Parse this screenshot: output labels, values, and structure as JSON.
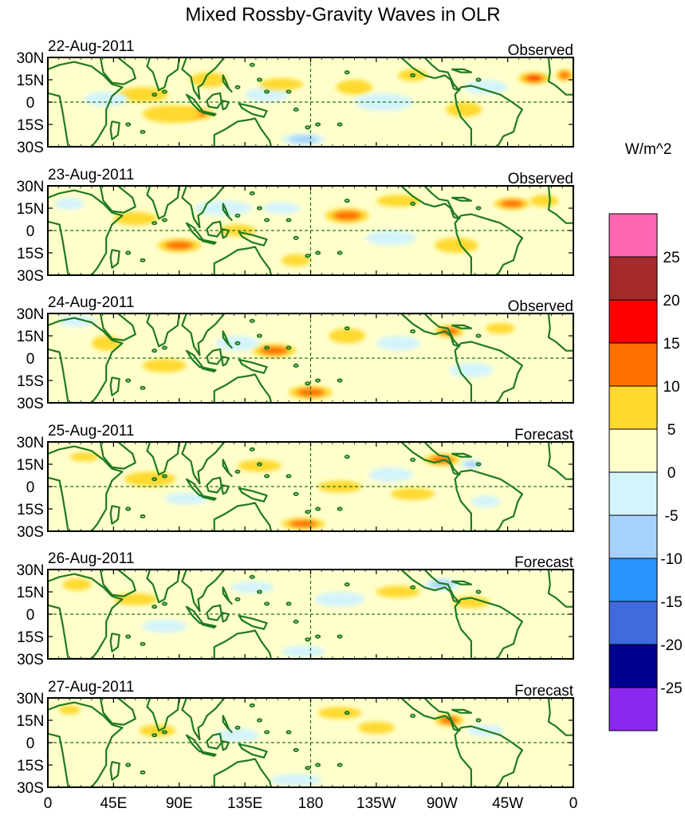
{
  "chart_data": {
    "type": "heatmap",
    "title": "Mixed Rossby-Gravity Waves in OLR",
    "units": "W/m^2",
    "x_ticks": [
      "0",
      "45E",
      "90E",
      "135E",
      "180",
      "135W",
      "90W",
      "45W",
      "0"
    ],
    "y_ticks": [
      "30N",
      "15N",
      "0",
      "15S",
      "30S"
    ],
    "x_range_deg": [
      0,
      360
    ],
    "y_range_deg": [
      -30,
      30
    ],
    "colorbar": {
      "levels": [
        "25",
        "20",
        "15",
        "10",
        "5",
        "0",
        "-5",
        "-10",
        "-15",
        "-20",
        "-25"
      ],
      "colors": [
        "#ff66b3",
        "#a52a2a",
        "#ff0000",
        "#ff7000",
        "#ffd92e",
        "#ffffcc",
        "#d4f4fb",
        "#a6d1fa",
        "#2893ff",
        "#3f6bde",
        "#000090",
        "#8c28ee"
      ]
    },
    "panels": [
      {
        "date": "22-Aug-2011",
        "kind": "Observed",
        "blobs": [
          {
            "lon": 65,
            "lat": 5,
            "val": 7,
            "w": 35,
            "h": 10
          },
          {
            "lon": 100,
            "lat": -8,
            "val": 16,
            "w": 28,
            "h": 8
          },
          {
            "lon": 85,
            "lat": -8,
            "val": 8,
            "w": 40,
            "h": 12
          },
          {
            "lon": 110,
            "lat": 15,
            "val": 6,
            "w": 25,
            "h": 10
          },
          {
            "lon": 150,
            "lat": 5,
            "val": -9,
            "w": 30,
            "h": 10
          },
          {
            "lon": 175,
            "lat": -25,
            "val": -13,
            "w": 30,
            "h": 8
          },
          {
            "lon": 210,
            "lat": 10,
            "val": 7,
            "w": 25,
            "h": 10
          },
          {
            "lon": 250,
            "lat": 18,
            "val": 6,
            "w": 20,
            "h": 8
          },
          {
            "lon": 285,
            "lat": -5,
            "val": 7,
            "w": 25,
            "h": 10
          },
          {
            "lon": 333,
            "lat": 16,
            "val": 16,
            "w": 22,
            "h": 8
          },
          {
            "lon": 354,
            "lat": 18,
            "val": 12,
            "w": 12,
            "h": 8
          },
          {
            "lon": 40,
            "lat": 2,
            "val": -6,
            "w": 30,
            "h": 10
          },
          {
            "lon": 230,
            "lat": 0,
            "val": -6,
            "w": 40,
            "h": 12
          },
          {
            "lon": 160,
            "lat": 12,
            "val": 6,
            "w": 30,
            "h": 8
          },
          {
            "lon": 300,
            "lat": 10,
            "val": -6,
            "w": 30,
            "h": 10
          }
        ]
      },
      {
        "date": "23-Aug-2011",
        "kind": "Observed",
        "blobs": [
          {
            "lon": 90,
            "lat": -10,
            "val": 12,
            "w": 30,
            "h": 9
          },
          {
            "lon": 60,
            "lat": 8,
            "val": 9,
            "w": 30,
            "h": 9
          },
          {
            "lon": 130,
            "lat": 0,
            "val": 9,
            "w": 25,
            "h": 8
          },
          {
            "lon": 205,
            "lat": 10,
            "val": 14,
            "w": 30,
            "h": 10
          },
          {
            "lon": 280,
            "lat": -10,
            "val": 8,
            "w": 30,
            "h": 10
          },
          {
            "lon": 318,
            "lat": 18,
            "val": 10,
            "w": 25,
            "h": 8
          },
          {
            "lon": 340,
            "lat": 20,
            "val": 7,
            "w": 20,
            "h": 8
          },
          {
            "lon": 240,
            "lat": 20,
            "val": 7,
            "w": 30,
            "h": 8
          },
          {
            "lon": 120,
            "lat": 15,
            "val": -8,
            "w": 40,
            "h": 10
          },
          {
            "lon": 235,
            "lat": -5,
            "val": -7,
            "w": 35,
            "h": 10
          },
          {
            "lon": 15,
            "lat": 18,
            "val": -8,
            "w": 20,
            "h": 8
          },
          {
            "lon": 170,
            "lat": -20,
            "val": 7,
            "w": 20,
            "h": 8
          },
          {
            "lon": 160,
            "lat": 15,
            "val": -6,
            "w": 25,
            "h": 8
          }
        ]
      },
      {
        "date": "24-Aug-2011",
        "kind": "Observed",
        "blobs": [
          {
            "lon": 180,
            "lat": -23,
            "val": 14,
            "w": 30,
            "h": 9
          },
          {
            "lon": 155,
            "lat": 5,
            "val": 12,
            "w": 30,
            "h": 9
          },
          {
            "lon": 80,
            "lat": -5,
            "val": 8,
            "w": 30,
            "h": 9
          },
          {
            "lon": 275,
            "lat": 18,
            "val": 12,
            "w": 20,
            "h": 8
          },
          {
            "lon": 205,
            "lat": 15,
            "val": 7,
            "w": 25,
            "h": 10
          },
          {
            "lon": 310,
            "lat": 20,
            "val": 7,
            "w": 20,
            "h": 7
          },
          {
            "lon": 130,
            "lat": 10,
            "val": -8,
            "w": 30,
            "h": 10
          },
          {
            "lon": 240,
            "lat": 10,
            "val": -7,
            "w": 30,
            "h": 10
          },
          {
            "lon": 40,
            "lat": 10,
            "val": 8,
            "w": 20,
            "h": 10
          },
          {
            "lon": 20,
            "lat": 25,
            "val": -6,
            "w": 25,
            "h": 8
          },
          {
            "lon": 290,
            "lat": -8,
            "val": -6,
            "w": 30,
            "h": 10
          }
        ]
      },
      {
        "date": "25-Aug-2011",
        "kind": "Forecast",
        "blobs": [
          {
            "lon": 175,
            "lat": -25,
            "val": 10,
            "w": 30,
            "h": 8
          },
          {
            "lon": 145,
            "lat": 14,
            "val": 9,
            "w": 30,
            "h": 8
          },
          {
            "lon": 270,
            "lat": 18,
            "val": 12,
            "w": 25,
            "h": 8
          },
          {
            "lon": 290,
            "lat": 15,
            "val": -12,
            "w": 15,
            "h": 6
          },
          {
            "lon": 235,
            "lat": 8,
            "val": -8,
            "w": 30,
            "h": 10
          },
          {
            "lon": 70,
            "lat": 5,
            "val": 6,
            "w": 35,
            "h": 10
          },
          {
            "lon": 95,
            "lat": -8,
            "val": -7,
            "w": 30,
            "h": 8
          },
          {
            "lon": 200,
            "lat": 0,
            "val": 6,
            "w": 30,
            "h": 8
          },
          {
            "lon": 300,
            "lat": -10,
            "val": -6,
            "w": 20,
            "h": 8
          },
          {
            "lon": 25,
            "lat": 20,
            "val": 6,
            "w": 20,
            "h": 6
          },
          {
            "lon": 250,
            "lat": -5,
            "val": 6,
            "w": 30,
            "h": 8
          }
        ]
      },
      {
        "date": "26-Aug-2011",
        "kind": "Forecast",
        "blobs": [
          {
            "lon": 270,
            "lat": 20,
            "val": -10,
            "w": 25,
            "h": 8
          },
          {
            "lon": 290,
            "lat": 8,
            "val": 6,
            "w": 25,
            "h": 8
          },
          {
            "lon": 240,
            "lat": 15,
            "val": 6,
            "w": 30,
            "h": 8
          },
          {
            "lon": 80,
            "lat": -8,
            "val": -7,
            "w": 30,
            "h": 9
          },
          {
            "lon": 140,
            "lat": 18,
            "val": -6,
            "w": 30,
            "h": 8
          },
          {
            "lon": 200,
            "lat": 10,
            "val": -6,
            "w": 35,
            "h": 10
          },
          {
            "lon": 60,
            "lat": 10,
            "val": 6,
            "w": 30,
            "h": 8
          },
          {
            "lon": 175,
            "lat": -25,
            "val": -6,
            "w": 30,
            "h": 8
          },
          {
            "lon": 20,
            "lat": 20,
            "val": 6,
            "w": 20,
            "h": 8
          }
        ]
      },
      {
        "date": "27-Aug-2011",
        "kind": "Forecast",
        "blobs": [
          {
            "lon": 275,
            "lat": 15,
            "val": 12,
            "w": 20,
            "h": 8
          },
          {
            "lon": 225,
            "lat": 10,
            "val": 9,
            "w": 25,
            "h": 8
          },
          {
            "lon": 75,
            "lat": 8,
            "val": 6,
            "w": 25,
            "h": 8
          },
          {
            "lon": 170,
            "lat": -25,
            "val": -6,
            "w": 35,
            "h": 8
          },
          {
            "lon": 300,
            "lat": 8,
            "val": -6,
            "w": 25,
            "h": 8
          },
          {
            "lon": 130,
            "lat": 5,
            "val": -6,
            "w": 30,
            "h": 9
          },
          {
            "lon": 200,
            "lat": 20,
            "val": 6,
            "w": 30,
            "h": 8
          },
          {
            "lon": 15,
            "lat": 22,
            "val": 6,
            "w": 15,
            "h": 6
          }
        ]
      }
    ]
  }
}
